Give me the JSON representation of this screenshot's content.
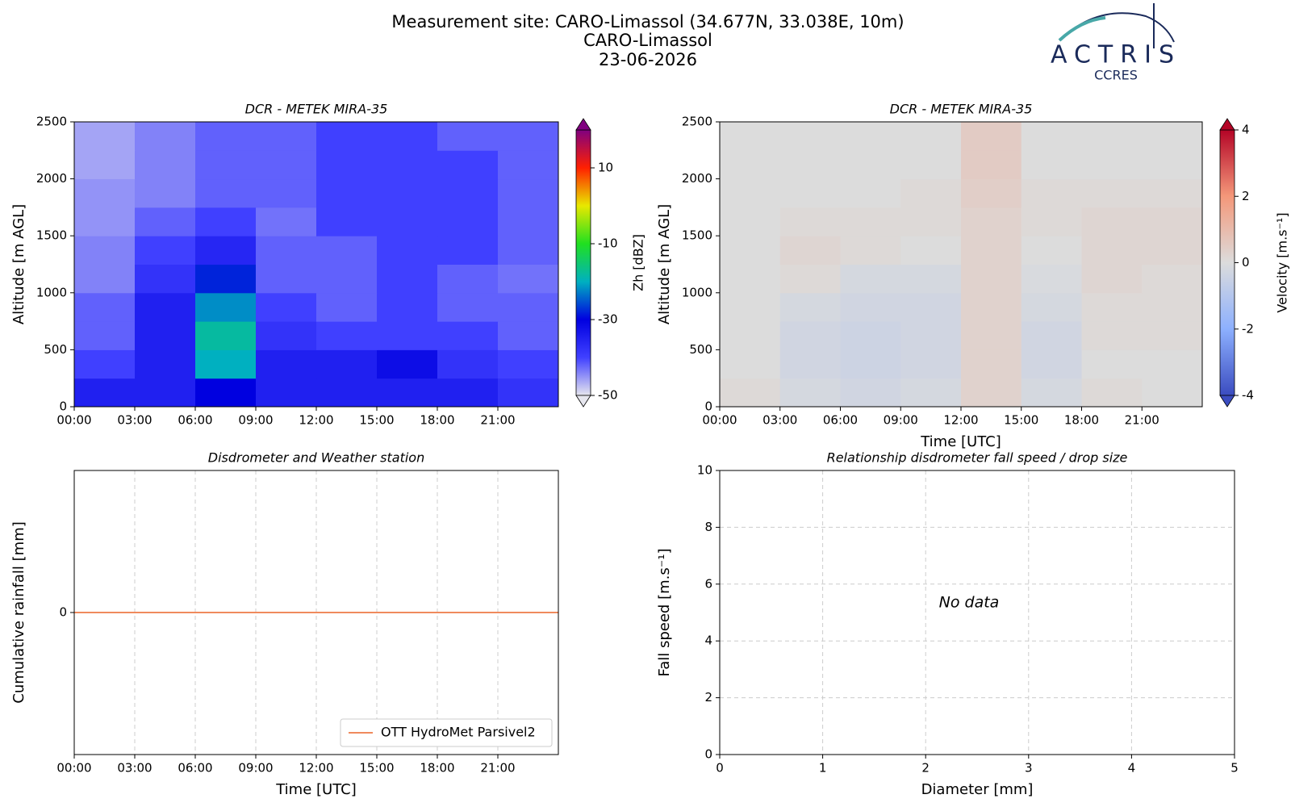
{
  "header": {
    "title": "Measurement site: CARO-Limassol (34.677N, 33.038E, 10m)",
    "site": "CARO-Limassol",
    "date": "23-06-2026"
  },
  "logo": {
    "name": "ACTRIS",
    "sub": "CCRES"
  },
  "chart_data": [
    {
      "type": "heatmap",
      "title": "DCR - METEK MIRA-35",
      "y_label": "Altitude [m AGL]",
      "x_edges": [
        0,
        3,
        6,
        9,
        12,
        15,
        18,
        21,
        24
      ],
      "y_edges": [
        0,
        250,
        500,
        750,
        1000,
        1250,
        1500,
        1750,
        2000,
        2250,
        2500
      ],
      "z": [
        [
          -35,
          -35,
          -30,
          -35,
          -35,
          -35,
          -35,
          -38
        ],
        [
          -40,
          -35,
          -20,
          -35,
          -35,
          -32,
          -38,
          -40
        ],
        [
          -42,
          -35,
          -18,
          -38,
          -40,
          -40,
          -40,
          -42
        ],
        [
          -42,
          -35,
          -22,
          -40,
          -42,
          -40,
          -42,
          -42
        ],
        [
          -44,
          -38,
          -28,
          -42,
          -42,
          -40,
          -42,
          -43
        ],
        [
          -44,
          -40,
          -36,
          -42,
          -42,
          -40,
          -40,
          -42
        ],
        [
          -45,
          -42,
          -40,
          -43,
          -40,
          -40,
          -40,
          -42
        ],
        [
          -45,
          -44,
          -42,
          -42,
          -40,
          -40,
          -40,
          -42
        ],
        [
          -46,
          -44,
          -42,
          -42,
          -40,
          -40,
          -40,
          -42
        ],
        [
          -46,
          -44,
          -42,
          -42,
          -40,
          -40,
          -42,
          -42
        ]
      ],
      "xlim": [
        0,
        24
      ],
      "xticks": [
        {
          "value": 0,
          "label": "00:00"
        },
        {
          "value": 3,
          "label": "03:00"
        },
        {
          "value": 6,
          "label": "06:00"
        },
        {
          "value": 9,
          "label": "09:00"
        },
        {
          "value": 12,
          "label": "12:00"
        },
        {
          "value": 15,
          "label": "15:00"
        },
        {
          "value": 18,
          "label": "18:00"
        },
        {
          "value": 21,
          "label": "21:00"
        }
      ],
      "ylim": [
        0,
        2500
      ],
      "yticks": [
        0,
        500,
        1000,
        1500,
        2000,
        2500
      ],
      "colorbar": {
        "label": "Zh [dBZ]",
        "lim": [
          -50,
          20
        ],
        "ticks": [
          -50,
          -30,
          -10,
          10
        ],
        "colormap": [
          "#e6e6ee",
          "#4040ff",
          "#0000e0",
          "#00b0c0",
          "#20e020",
          "#e8e800",
          "#ff2000",
          "#800080"
        ]
      }
    },
    {
      "type": "heatmap",
      "title": "DCR - METEK MIRA-35",
      "x_label": "Time [UTC]",
      "y_label": "Altitude [m AGL]",
      "x_edges": [
        0,
        3,
        6,
        9,
        12,
        15,
        18,
        21,
        24
      ],
      "y_edges": [
        0,
        250,
        500,
        750,
        1000,
        1250,
        1500,
        1750,
        2000,
        2250,
        2500
      ],
      "z": [
        [
          0.1,
          -0.2,
          -0.3,
          -0.2,
          0.3,
          -0.2,
          0.1,
          0.0
        ],
        [
          0.0,
          -0.3,
          -0.4,
          -0.3,
          0.3,
          -0.3,
          0.0,
          0.0
        ],
        [
          0.0,
          -0.3,
          -0.4,
          -0.3,
          0.3,
          -0.3,
          0.1,
          0.1
        ],
        [
          0.0,
          -0.2,
          -0.3,
          -0.3,
          0.3,
          -0.2,
          0.1,
          0.1
        ],
        [
          0.0,
          0.1,
          -0.2,
          -0.2,
          0.3,
          -0.1,
          0.2,
          0.1
        ],
        [
          0.0,
          0.2,
          0.1,
          0.0,
          0.3,
          0.0,
          0.2,
          0.2
        ],
        [
          0.0,
          0.1,
          0.1,
          0.1,
          0.3,
          0.1,
          0.2,
          0.2
        ],
        [
          0.0,
          0.0,
          0.0,
          0.1,
          0.4,
          0.1,
          0.1,
          0.1
        ],
        [
          0.0,
          0.0,
          0.0,
          0.0,
          0.5,
          0.0,
          0.0,
          0.0
        ],
        [
          0.0,
          0.0,
          0.0,
          0.0,
          0.5,
          0.0,
          0.0,
          0.0
        ]
      ],
      "xlim": [
        0,
        24
      ],
      "xticks": [
        {
          "value": 0,
          "label": "00:00"
        },
        {
          "value": 3,
          "label": "03:00"
        },
        {
          "value": 6,
          "label": "06:00"
        },
        {
          "value": 9,
          "label": "09:00"
        },
        {
          "value": 12,
          "label": "12:00"
        },
        {
          "value": 15,
          "label": "15:00"
        },
        {
          "value": 18,
          "label": "18:00"
        },
        {
          "value": 21,
          "label": "21:00"
        }
      ],
      "ylim": [
        0,
        2500
      ],
      "yticks": [
        0,
        500,
        1000,
        1500,
        2000,
        2500
      ],
      "colorbar": {
        "label": "Velocity [m.s⁻¹]",
        "lim": [
          -4,
          4
        ],
        "ticks": [
          -4,
          -2,
          0,
          2,
          4
        ],
        "colormap": [
          "#3b4cc0",
          "#8db0fe",
          "#dcdcdc",
          "#f4987a",
          "#b40426"
        ]
      }
    },
    {
      "type": "line",
      "title": "Disdrometer and Weather station",
      "x_label": "Time [UTC]",
      "y_label": "Cumulative rainfall [mm]",
      "x": [
        0,
        24
      ],
      "series": [
        {
          "name": "OTT HydroMet Parsivel2",
          "color": "#f08a5d",
          "values": [
            0,
            0
          ]
        }
      ],
      "xlim": [
        0,
        24
      ],
      "xticks": [
        {
          "value": 0,
          "label": "00:00"
        },
        {
          "value": 3,
          "label": "03:00"
        },
        {
          "value": 6,
          "label": "06:00"
        },
        {
          "value": 9,
          "label": "09:00"
        },
        {
          "value": 12,
          "label": "12:00"
        },
        {
          "value": 15,
          "label": "15:00"
        },
        {
          "value": 18,
          "label": "18:00"
        },
        {
          "value": 21,
          "label": "21:00"
        }
      ],
      "ylim": [
        -0.055,
        0.055
      ],
      "yticks": [
        0
      ],
      "grid": "x",
      "legend": "lower right"
    },
    {
      "type": "scatter",
      "title": "Relationship disdrometer fall speed / drop size",
      "x_label": "Diameter [mm]",
      "y_label": "Fall speed [m.s⁻¹]",
      "x": [],
      "values": [],
      "annotation": "No data",
      "xlim": [
        0,
        5
      ],
      "xticks": [
        0,
        1,
        2,
        3,
        4,
        5
      ],
      "ylim": [
        0,
        10
      ],
      "yticks": [
        0,
        2,
        4,
        6,
        8,
        10
      ],
      "grid": "both"
    }
  ]
}
